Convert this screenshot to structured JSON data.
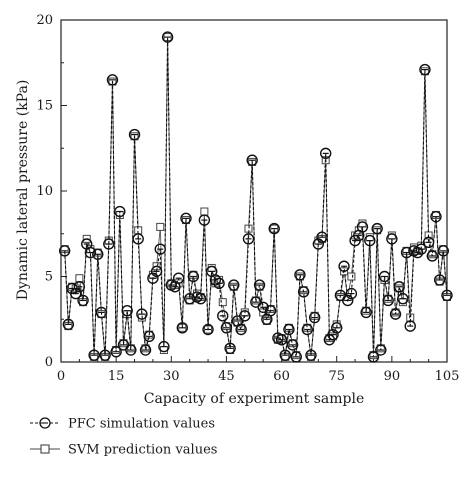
{
  "chart_data": {
    "type": "line",
    "xlabel": "Capacity of experiment sample",
    "ylabel": "Dynamic lateral pressure (kPa)",
    "xlim": [
      0,
      105
    ],
    "ylim": [
      0,
      20
    ],
    "xticks": [
      "0",
      "15",
      "30",
      "45",
      "60",
      "75",
      "90",
      "105"
    ],
    "xtick_values": [
      0,
      15,
      30,
      45,
      60,
      75,
      90,
      105
    ],
    "yticks": [
      "0",
      "5",
      "10",
      "15",
      "20"
    ],
    "ytick_values": [
      0,
      5,
      10,
      15,
      20
    ],
    "legend_position": "bottom-left",
    "series": [
      {
        "name": "PFC simulation values",
        "marker": "circle-dash",
        "line_style": "dashed",
        "color": "#222222",
        "x": [
          1,
          2,
          3,
          4,
          5,
          6,
          7,
          8,
          9,
          10,
          11,
          12,
          13,
          14,
          15,
          16,
          17,
          18,
          19,
          20,
          21,
          22,
          23,
          24,
          25,
          26,
          27,
          28,
          29,
          30,
          31,
          32,
          33,
          34,
          35,
          36,
          37,
          38,
          39,
          40,
          41,
          42,
          43,
          44,
          45,
          46,
          47,
          48,
          49,
          50,
          51,
          52,
          53,
          54,
          55,
          56,
          57,
          58,
          59,
          60,
          61,
          62,
          63,
          64,
          65,
          66,
          67,
          68,
          69,
          70,
          71,
          72,
          73,
          74,
          75,
          76,
          77,
          78,
          79,
          80,
          81,
          82,
          83,
          84,
          85,
          86,
          87,
          88,
          89,
          90,
          91,
          92,
          93,
          94,
          95,
          96,
          97,
          98,
          99,
          100,
          101,
          102,
          103,
          104,
          105
        ],
        "values": [
          6.5,
          2.2,
          4.3,
          4.0,
          4.4,
          3.6,
          6.9,
          6.4,
          0.4,
          6.3,
          2.9,
          0.4,
          6.9,
          16.5,
          0.6,
          8.8,
          1.0,
          3.0,
          0.7,
          13.3,
          7.2,
          2.8,
          0.7,
          1.5,
          4.9,
          5.3,
          6.6,
          0.9,
          19.0,
          4.5,
          4.4,
          4.9,
          2.0,
          8.4,
          3.7,
          5.0,
          3.8,
          3.7,
          8.3,
          1.9,
          5.3,
          4.8,
          4.6,
          2.7,
          2.0,
          0.8,
          4.5,
          2.4,
          1.9,
          2.7,
          7.2,
          11.8,
          3.5,
          4.5,
          3.2,
          2.5,
          3.0,
          7.8,
          1.4,
          1.3,
          0.4,
          1.9,
          1.0,
          0.3,
          5.1,
          4.1,
          1.9,
          0.4,
          2.6,
          6.9,
          7.3,
          12.2,
          1.3,
          1.6,
          2.0,
          3.9,
          5.6,
          3.6,
          4.0,
          7.1,
          7.4,
          7.9,
          2.9,
          7.1,
          0.3,
          7.8,
          0.7,
          5.0,
          3.6,
          7.2,
          2.8,
          4.4,
          3.7,
          6.4,
          2.1,
          6.5,
          6.4,
          6.6,
          17.1,
          7.0,
          6.2,
          8.5,
          4.8,
          6.5,
          3.9
        ]
      },
      {
        "name": "SVM prediction values",
        "marker": "square",
        "line_style": "solid",
        "color": "#222222",
        "x": [
          1,
          2,
          3,
          4,
          5,
          6,
          7,
          8,
          9,
          10,
          11,
          12,
          13,
          14,
          15,
          16,
          17,
          18,
          19,
          20,
          21,
          22,
          23,
          24,
          25,
          26,
          27,
          28,
          29,
          30,
          31,
          32,
          33,
          34,
          35,
          36,
          37,
          38,
          39,
          40,
          41,
          42,
          43,
          44,
          45,
          46,
          47,
          48,
          49,
          50,
          51,
          52,
          53,
          54,
          55,
          56,
          57,
          58,
          59,
          60,
          61,
          62,
          63,
          64,
          65,
          66,
          67,
          68,
          69,
          70,
          71,
          72,
          73,
          74,
          75,
          76,
          77,
          78,
          79,
          80,
          81,
          82,
          83,
          84,
          85,
          86,
          87,
          88,
          89,
          90,
          91,
          92,
          93,
          94,
          95,
          96,
          97,
          98,
          99,
          100,
          101,
          102,
          103,
          104,
          105
        ],
        "values": [
          6.6,
          2.1,
          4.4,
          4.3,
          4.9,
          3.5,
          7.2,
          6.6,
          0.3,
          6.4,
          2.8,
          0.3,
          7.1,
          16.4,
          0.7,
          8.6,
          1.1,
          2.8,
          0.8,
          13.2,
          7.7,
          2.6,
          0.8,
          1.6,
          5.1,
          5.6,
          7.9,
          0.7,
          19.0,
          4.6,
          4.5,
          4.6,
          2.0,
          8.3,
          3.6,
          5.1,
          4.0,
          3.8,
          8.8,
          1.9,
          5.5,
          4.6,
          4.8,
          3.5,
          2.1,
          0.7,
          4.4,
          2.3,
          2.0,
          2.9,
          7.8,
          11.7,
          3.6,
          4.4,
          2.9,
          2.4,
          3.1,
          7.8,
          1.3,
          1.4,
          0.3,
          2.0,
          1.1,
          0.4,
          5.0,
          4.2,
          2.0,
          0.3,
          2.7,
          7.1,
          7.2,
          11.8,
          1.4,
          1.5,
          2.2,
          3.8,
          5.3,
          3.8,
          5.0,
          7.4,
          7.7,
          8.1,
          3.0,
          7.3,
          0.4,
          7.7,
          0.8,
          4.8,
          3.7,
          7.4,
          2.9,
          4.3,
          3.5,
          6.5,
          2.6,
          6.7,
          6.5,
          6.8,
          17.0,
          7.4,
          6.3,
          8.6,
          4.7,
          6.6,
          3.8
        ]
      }
    ]
  }
}
